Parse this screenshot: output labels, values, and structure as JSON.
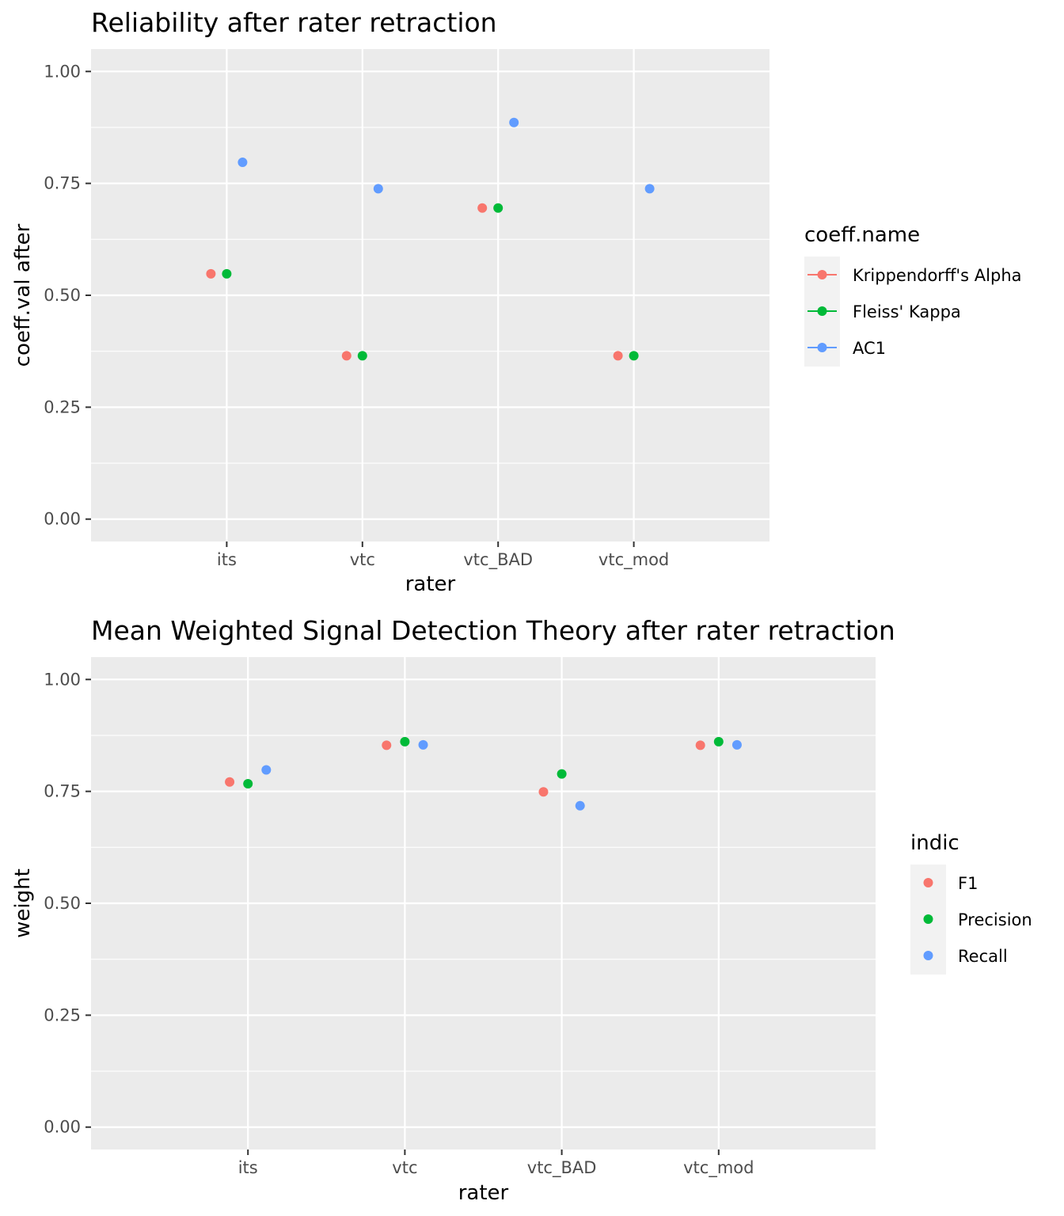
{
  "chart_data": [
    {
      "type": "scatter",
      "title": "Reliability after rater retraction",
      "xlabel": "rater",
      "ylabel": "coeff.val after",
      "ylim": [
        -0.05,
        1.05
      ],
      "y_ticks": [
        "0.00",
        "0.25",
        "0.50",
        "0.75",
        "1.00"
      ],
      "categories": [
        "its",
        "vtc",
        "vtc_BAD",
        "vtc_mod"
      ],
      "grid": true,
      "legend": {
        "title": "coeff.name",
        "placement": "right",
        "key_style": "line-point"
      },
      "series": [
        {
          "name": "Krippendorff's Alpha",
          "color": "#F8766D",
          "values": [
            0.548,
            0.365,
            0.695,
            0.365
          ]
        },
        {
          "name": "Fleiss' Kappa",
          "color": "#00BA38",
          "values": [
            0.548,
            0.365,
            0.695,
            0.365
          ]
        },
        {
          "name": "AC1",
          "color": "#619CFF",
          "values": [
            0.797,
            0.738,
            0.886,
            0.738
          ]
        }
      ]
    },
    {
      "type": "scatter",
      "title": "Mean Weighted Signal Detection Theory after rater retraction",
      "xlabel": "rater",
      "ylabel": "weight",
      "ylim": [
        -0.05,
        1.05
      ],
      "y_ticks": [
        "0.00",
        "0.25",
        "0.50",
        "0.75",
        "1.00"
      ],
      "categories": [
        "its",
        "vtc",
        "vtc_BAD",
        "vtc_mod"
      ],
      "grid": true,
      "legend": {
        "title": "indic",
        "placement": "right",
        "key_style": "point"
      },
      "series": [
        {
          "name": "F1",
          "color": "#F8766D",
          "values": [
            0.771,
            0.853,
            0.749,
            0.853
          ]
        },
        {
          "name": "Precision",
          "color": "#00BA38",
          "values": [
            0.767,
            0.861,
            0.789,
            0.861
          ]
        },
        {
          "name": "Recall",
          "color": "#619CFF",
          "values": [
            0.798,
            0.854,
            0.718,
            0.854
          ]
        }
      ]
    }
  ]
}
